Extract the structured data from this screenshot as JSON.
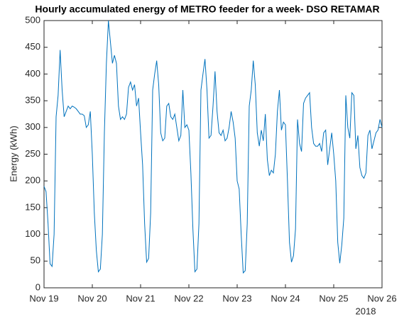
{
  "chart_data": {
    "type": "line",
    "title": "Hourly accumulated energy of METRO feeder for a week- DSO RETAMAR",
    "ylabel": "Energy (kWh)",
    "x_secondary_label": "2018",
    "xlim": [
      "2018-11-19",
      "2018-11-26"
    ],
    "xticks": [
      {
        "value": "2018-11-19",
        "label": "Nov 19"
      },
      {
        "value": "2018-11-20",
        "label": "Nov 20"
      },
      {
        "value": "2018-11-21",
        "label": "Nov 21"
      },
      {
        "value": "2018-11-22",
        "label": "Nov 22"
      },
      {
        "value": "2018-11-23",
        "label": "Nov 23"
      },
      {
        "value": "2018-11-24",
        "label": "Nov 24"
      },
      {
        "value": "2018-11-25",
        "label": "Nov 25"
      },
      {
        "value": "2018-11-26",
        "label": "Nov 26"
      }
    ],
    "ylim": [
      0,
      500
    ],
    "yticks": [
      0,
      50,
      100,
      150,
      200,
      250,
      300,
      350,
      400,
      450,
      500
    ],
    "grid": false,
    "series": [
      {
        "name": "METRO",
        "color": "#0072bd",
        "values": [
          190,
          180,
          120,
          45,
          40,
          100,
          320,
          360,
          445,
          370,
          320,
          330,
          340,
          335,
          340,
          338,
          335,
          330,
          325,
          325,
          322,
          300,
          305,
          330,
          250,
          140,
          70,
          30,
          35,
          100,
          290,
          420,
          500,
          460,
          420,
          435,
          420,
          340,
          315,
          320,
          315,
          325,
          375,
          385,
          370,
          380,
          340,
          355,
          290,
          230,
          120,
          48,
          55,
          140,
          370,
          400,
          425,
          380,
          290,
          275,
          280,
          340,
          345,
          320,
          315,
          325,
          300,
          275,
          285,
          370,
          300,
          305,
          295,
          215,
          110,
          30,
          35,
          120,
          370,
          400,
          428,
          370,
          280,
          285,
          340,
          405,
          330,
          290,
          285,
          295,
          275,
          280,
          300,
          330,
          310,
          280,
          200,
          185,
          100,
          28,
          32,
          120,
          340,
          370,
          425,
          380,
          290,
          265,
          295,
          275,
          325,
          240,
          210,
          220,
          215,
          250,
          330,
          370,
          295,
          310,
          305,
          200,
          85,
          48,
          60,
          110,
          315,
          270,
          255,
          345,
          355,
          360,
          365,
          300,
          270,
          265,
          265,
          270,
          255,
          290,
          295,
          230,
          260,
          290,
          250,
          200,
          85,
          46,
          80,
          130,
          360,
          300,
          280,
          365,
          360,
          260,
          285,
          225,
          210,
          205,
          215,
          285,
          295,
          260,
          275,
          290,
          295,
          315,
          300
        ]
      }
    ]
  }
}
